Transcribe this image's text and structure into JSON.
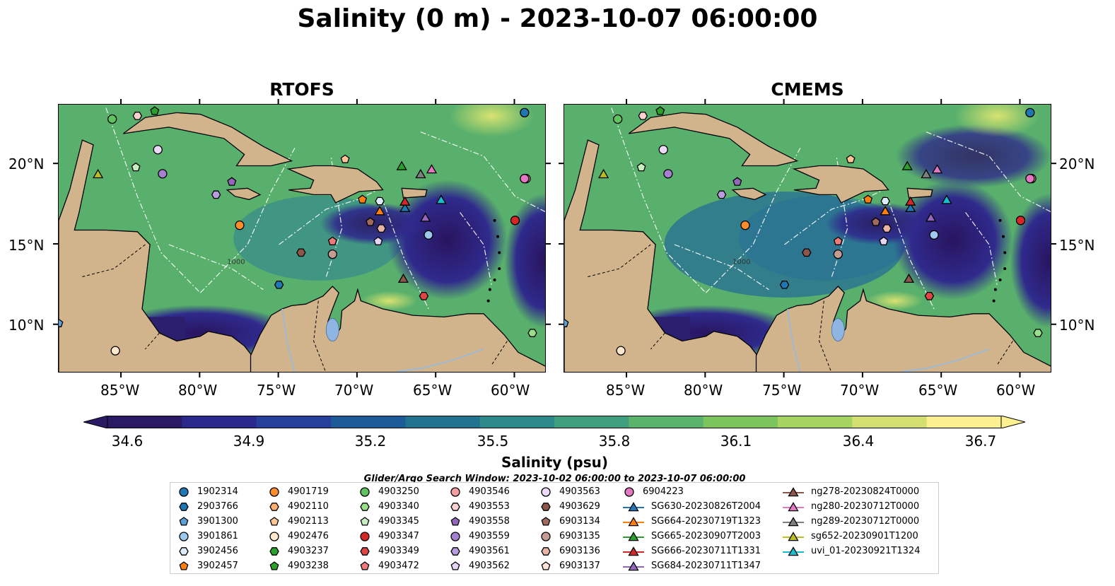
{
  "title": "Salinity (0 m) - 2023-10-07 06:00:00",
  "panels": [
    {
      "title": "RTOFS"
    },
    {
      "title": "CMEMS"
    }
  ],
  "lat_ticks": [
    "20°N",
    "15°N",
    "10°N"
  ],
  "lon_ticks": [
    "85°W",
    "80°W",
    "75°W",
    "70°W",
    "65°W",
    "60°W"
  ],
  "contour_label": "1000",
  "colorbar": {
    "ticks": [
      "34.6",
      "34.9",
      "35.2",
      "35.5",
      "35.8",
      "36.1",
      "36.4",
      "36.7"
    ],
    "label": "Salinity (psu)",
    "min": 34.6,
    "max": 36.7,
    "colors": [
      "#2a1a64",
      "#2b2a8c",
      "#25409a",
      "#1d5a98",
      "#1f7290",
      "#2c8a8a",
      "#3f9e7e",
      "#5ab36b",
      "#7cc45c",
      "#a6d460",
      "#d3e06f",
      "#fbef8f"
    ]
  },
  "search_window": "Glider/Argo Search Window: 2023-10-02 06:00:00 to 2023-10-07 06:00:00",
  "legend": {
    "columns": [
      [
        {
          "label": "1902314",
          "marker": "circle",
          "color": "#1f77b4"
        },
        {
          "label": "2903766",
          "marker": "hexagon",
          "color": "#1f77b4"
        },
        {
          "label": "3901300",
          "marker": "pentagon",
          "color": "#5ba3d6"
        },
        {
          "label": "3901861",
          "marker": "circle",
          "color": "#9ec9ef"
        },
        {
          "label": "3902456",
          "marker": "hexagon",
          "color": "#dcecfa"
        },
        {
          "label": "3902457",
          "marker": "pentagon",
          "color": "#ff7f0e"
        }
      ],
      [
        {
          "label": "4901719",
          "marker": "circle",
          "color": "#ff8c2a"
        },
        {
          "label": "4902110",
          "marker": "hexagon",
          "color": "#ffb070"
        },
        {
          "label": "4902113",
          "marker": "pentagon",
          "color": "#ffc594"
        },
        {
          "label": "4902476",
          "marker": "circle",
          "color": "#ffe8cc"
        },
        {
          "label": "4903237",
          "marker": "hexagon",
          "color": "#2ca02c"
        },
        {
          "label": "4903238",
          "marker": "pentagon",
          "color": "#2ca02c"
        }
      ],
      [
        {
          "label": "4903250",
          "marker": "circle",
          "color": "#5fc45f"
        },
        {
          "label": "4903340",
          "marker": "hexagon",
          "color": "#98df8a"
        },
        {
          "label": "4903345",
          "marker": "pentagon",
          "color": "#c7f0c0"
        },
        {
          "label": "4903347",
          "marker": "circle",
          "color": "#d62728"
        },
        {
          "label": "4903349",
          "marker": "hexagon",
          "color": "#e04545"
        },
        {
          "label": "4903472",
          "marker": "pentagon",
          "color": "#f07a7a"
        }
      ],
      [
        {
          "label": "4903546",
          "marker": "circle",
          "color": "#f2a0a0"
        },
        {
          "label": "4903553",
          "marker": "hexagon",
          "color": "#fbd0d0"
        },
        {
          "label": "4903558",
          "marker": "pentagon",
          "color": "#9467bd"
        },
        {
          "label": "4903559",
          "marker": "circle",
          "color": "#a57fd0"
        },
        {
          "label": "4903561",
          "marker": "hexagon",
          "color": "#b99be0"
        },
        {
          "label": "4903562",
          "marker": "pentagon",
          "color": "#e4d6f5"
        }
      ],
      [
        {
          "label": "4903563",
          "marker": "circle",
          "color": "#ecd9f7"
        },
        {
          "label": "4903629",
          "marker": "hexagon",
          "color": "#8c564b"
        },
        {
          "label": "6903134",
          "marker": "pentagon",
          "color": "#a06a5d"
        },
        {
          "label": "6903135",
          "marker": "circle",
          "color": "#c49c94"
        },
        {
          "label": "6903136",
          "marker": "hexagon",
          "color": "#e8b4a5"
        },
        {
          "label": "6903137",
          "marker": "pentagon",
          "color": "#fde2d8"
        }
      ],
      [
        {
          "label": "6904223",
          "marker": "circle",
          "color": "#e377c2"
        },
        {
          "label": "SG630-20230826T2004",
          "marker": "triangle-line",
          "color": "#1f77b4"
        },
        {
          "label": "SG664-20230719T1323",
          "marker": "triangle-line",
          "color": "#ff7f0e"
        },
        {
          "label": "SG665-20230907T2003",
          "marker": "triangle-line",
          "color": "#2ca02c"
        },
        {
          "label": "SG666-20230711T1331",
          "marker": "triangle-line",
          "color": "#d62728"
        },
        {
          "label": "SG684-20230711T1347",
          "marker": "triangle-line",
          "color": "#9467bd"
        }
      ],
      [
        {
          "label": "ng278-20230824T0000",
          "marker": "triangle-line",
          "color": "#8c564b"
        },
        {
          "label": "ng280-20230712T0000",
          "marker": "triangle-line",
          "color": "#e377c2"
        },
        {
          "label": "ng289-20230712T0000",
          "marker": "triangle-line",
          "color": "#7f7f7f"
        },
        {
          "label": "sg652-20230901T1200",
          "marker": "triangle-line",
          "color": "#bcbd22"
        },
        {
          "label": "uvi_01-20230921T1324",
          "marker": "triangle-line",
          "color": "#17becf"
        }
      ]
    ]
  },
  "map_points": [
    {
      "id": "1902314",
      "marker": "circle",
      "color": "#1f77b4",
      "lon": -59.4,
      "lat": 23.2
    },
    {
      "id": "2903766",
      "marker": "hexagon",
      "color": "#1f77b4",
      "lon": -75.0,
      "lat": 12.5
    },
    {
      "id": "3901300",
      "marker": "pentagon",
      "color": "#5ba3d6",
      "lon": -89.0,
      "lat": 10.1
    },
    {
      "id": "3901861",
      "marker": "circle",
      "color": "#9ec9ef",
      "lon": -65.5,
      "lat": 15.6
    },
    {
      "id": "3902456",
      "marker": "hexagon",
      "color": "#dcecfa",
      "lon": -68.6,
      "lat": 17.7
    },
    {
      "id": "3902457",
      "marker": "pentagon",
      "color": "#ff7f0e",
      "lon": -69.7,
      "lat": 17.8
    },
    {
      "id": "4901719",
      "marker": "circle",
      "color": "#ff8c2a",
      "lon": -77.5,
      "lat": 16.2
    },
    {
      "id": "4902113",
      "marker": "pentagon",
      "color": "#ffc594",
      "lon": -70.8,
      "lat": 20.3
    },
    {
      "id": "4902476",
      "marker": "circle",
      "color": "#ffe8cc",
      "lon": -85.4,
      "lat": 8.4
    },
    {
      "id": "4903238",
      "marker": "pentagon",
      "color": "#2ca02c",
      "lon": -82.9,
      "lat": 23.3
    },
    {
      "id": "4903250",
      "marker": "circle",
      "color": "#5fc45f",
      "lon": -85.6,
      "lat": 22.8
    },
    {
      "id": "4903340",
      "marker": "hexagon",
      "color": "#98df8a",
      "lon": -58.9,
      "lat": 9.5
    },
    {
      "id": "4903345",
      "marker": "pentagon",
      "color": "#c7f0c0",
      "lon": -84.1,
      "lat": 19.8
    },
    {
      "id": "4903347",
      "marker": "circle",
      "color": "#d62728",
      "lon": -60.0,
      "lat": 16.5
    },
    {
      "id": "4903349",
      "marker": "hexagon",
      "color": "#e04545",
      "lon": -65.8,
      "lat": 11.8
    },
    {
      "id": "4903472",
      "marker": "pentagon",
      "color": "#f07a7a",
      "lon": -71.6,
      "lat": 15.2
    },
    {
      "id": "4903546",
      "marker": "circle",
      "color": "#f2a0a0",
      "lon": -59.3,
      "lat": 19.1
    },
    {
      "id": "4903553",
      "marker": "hexagon",
      "color": "#fbd0d0",
      "lon": -84.0,
      "lat": 23.0
    },
    {
      "id": "4903558",
      "marker": "pentagon",
      "color": "#9467bd",
      "lon": -78.0,
      "lat": 18.9
    },
    {
      "id": "4903559",
      "marker": "circle",
      "color": "#a57fd0",
      "lon": -82.4,
      "lat": 19.4
    },
    {
      "id": "4903561",
      "marker": "hexagon",
      "color": "#b99be0",
      "lon": -79.0,
      "lat": 18.1
    },
    {
      "id": "4903562",
      "marker": "pentagon",
      "color": "#e4d6f5",
      "lon": -68.7,
      "lat": 15.2
    },
    {
      "id": "4903563",
      "marker": "circle",
      "color": "#ecd9f7",
      "lon": -82.7,
      "lat": 20.9
    },
    {
      "id": "4903629",
      "marker": "hexagon",
      "color": "#8c564b",
      "lon": -73.6,
      "lat": 14.5
    },
    {
      "id": "6903134",
      "marker": "pentagon",
      "color": "#a06a5d",
      "lon": -69.2,
      "lat": 16.4
    },
    {
      "id": "6903135",
      "marker": "circle",
      "color": "#c49c94",
      "lon": -71.6,
      "lat": 14.4
    },
    {
      "id": "6903136",
      "marker": "hexagon",
      "color": "#e8b4a5",
      "lon": -68.5,
      "lat": 16.0
    },
    {
      "id": "6904223",
      "marker": "circle",
      "color": "#e377c2",
      "lon": -59.4,
      "lat": 19.1
    },
    {
      "id": "SG630",
      "marker": "triangle",
      "color": "#1f77b4",
      "lon": -67.0,
      "lat": 17.3
    },
    {
      "id": "SG664",
      "marker": "triangle",
      "color": "#ff7f0e",
      "lon": -68.6,
      "lat": 17.1
    },
    {
      "id": "SG665",
      "marker": "triangle",
      "color": "#2ca02c",
      "lon": -67.2,
      "lat": 19.9
    },
    {
      "id": "SG666",
      "marker": "triangle",
      "color": "#d62728",
      "lon": -67.0,
      "lat": 17.7
    },
    {
      "id": "SG684",
      "marker": "triangle",
      "color": "#9467bd",
      "lon": -65.7,
      "lat": 16.7
    },
    {
      "id": "ng278",
      "marker": "triangle",
      "color": "#8c564b",
      "lon": -67.1,
      "lat": 12.9
    },
    {
      "id": "ng280",
      "marker": "triangle",
      "color": "#e377c2",
      "lon": -65.3,
      "lat": 19.7
    },
    {
      "id": "ng289",
      "marker": "triangle",
      "color": "#7f7f7f",
      "lon": -66.0,
      "lat": 19.4
    },
    {
      "id": "sg652",
      "marker": "triangle",
      "color": "#bcbd22",
      "lon": -86.5,
      "lat": 19.4
    },
    {
      "id": "uvi_01",
      "marker": "triangle",
      "color": "#17becf",
      "lon": -64.7,
      "lat": 17.8
    }
  ]
}
